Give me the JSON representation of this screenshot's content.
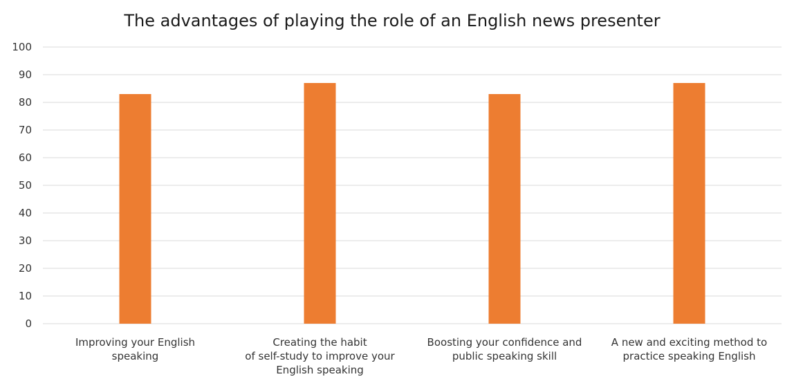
{
  "chart_data": {
    "type": "bar",
    "title": "The advantages of playing the role of an English news presenter",
    "categories": [
      [
        "Improving your English",
        "speaking"
      ],
      [
        "Creating the habit",
        "of self-study to improve your",
        "English speaking"
      ],
      [
        "Boosting your confidence and",
        "public speaking skill"
      ],
      [
        "A new and exciting method to",
        "practice speaking English"
      ]
    ],
    "values": [
      83,
      87,
      83,
      87
    ],
    "ylim": [
      0,
      100
    ],
    "yticks": [
      0,
      10,
      20,
      30,
      40,
      50,
      60,
      70,
      80,
      90,
      100
    ],
    "grid": true,
    "legend": "none",
    "bar_color": "#ed7d31",
    "grid_color": "#d9d9d9",
    "axis_color": "#d9d9d9"
  }
}
